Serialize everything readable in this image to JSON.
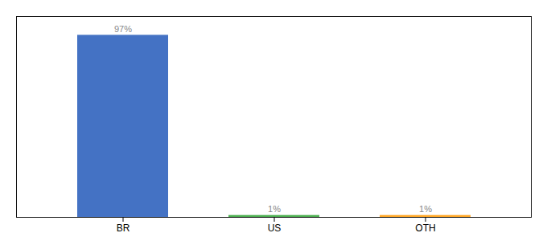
{
  "chart_data": {
    "type": "bar",
    "categories": [
      "BR",
      "US",
      "OTH"
    ],
    "values": [
      97,
      1,
      1
    ],
    "value_labels": [
      "97%",
      "1%",
      "1%"
    ],
    "data_labels": true,
    "colors": [
      "#4472c4",
      "#4caf50",
      "#ffa726"
    ],
    "ylim": [
      0,
      107
    ],
    "tick_labels": "x",
    "grid": false
  }
}
